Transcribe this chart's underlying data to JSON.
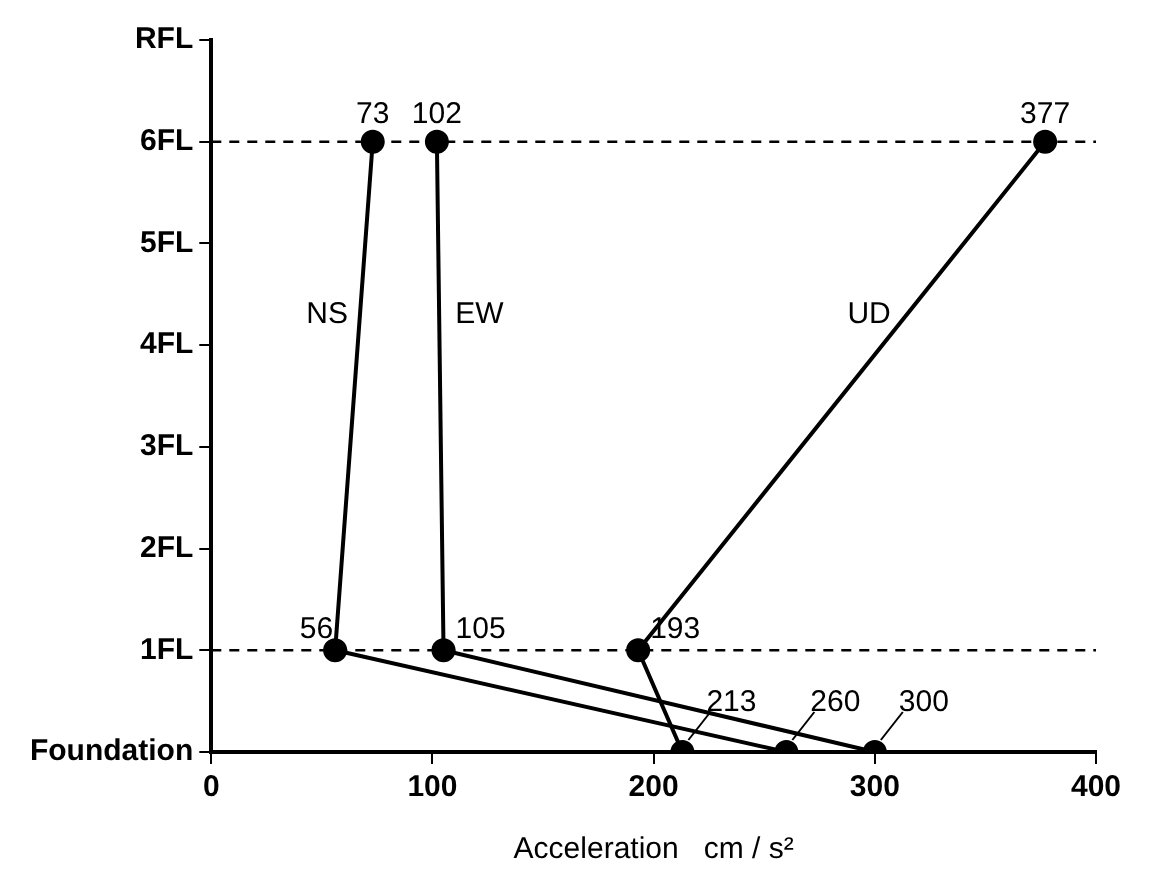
{
  "chart_data": {
    "type": "line",
    "orientation": "horizontal",
    "xlabel": "Acceleration   cm / s²",
    "xlim": [
      0,
      400
    ],
    "xticks": [
      0,
      100,
      200,
      300,
      400
    ],
    "categories": [
      "RFL",
      "6FL",
      "5FL",
      "4FL",
      "3FL",
      "2FL",
      "1FL",
      "Foundation"
    ],
    "series": [
      {
        "name": "NS",
        "color": "#000000",
        "values": [
          null,
          73,
          null,
          null,
          null,
          null,
          56,
          260
        ]
      },
      {
        "name": "EW",
        "color": "#000000",
        "values": [
          null,
          102,
          null,
          null,
          null,
          null,
          105,
          300
        ]
      },
      {
        "name": "UD",
        "color": "#000000",
        "values": [
          null,
          377,
          null,
          null,
          null,
          null,
          193,
          213
        ]
      }
    ],
    "ref_lines": [
      {
        "axis": "y",
        "value": "1FL",
        "line_style": "dashed"
      },
      {
        "axis": "y",
        "value": "6FL",
        "line_style": "dashed"
      }
    ],
    "data_labels": true,
    "marker": "circle",
    "line_style": "solid",
    "grid": false,
    "legend": false
  }
}
